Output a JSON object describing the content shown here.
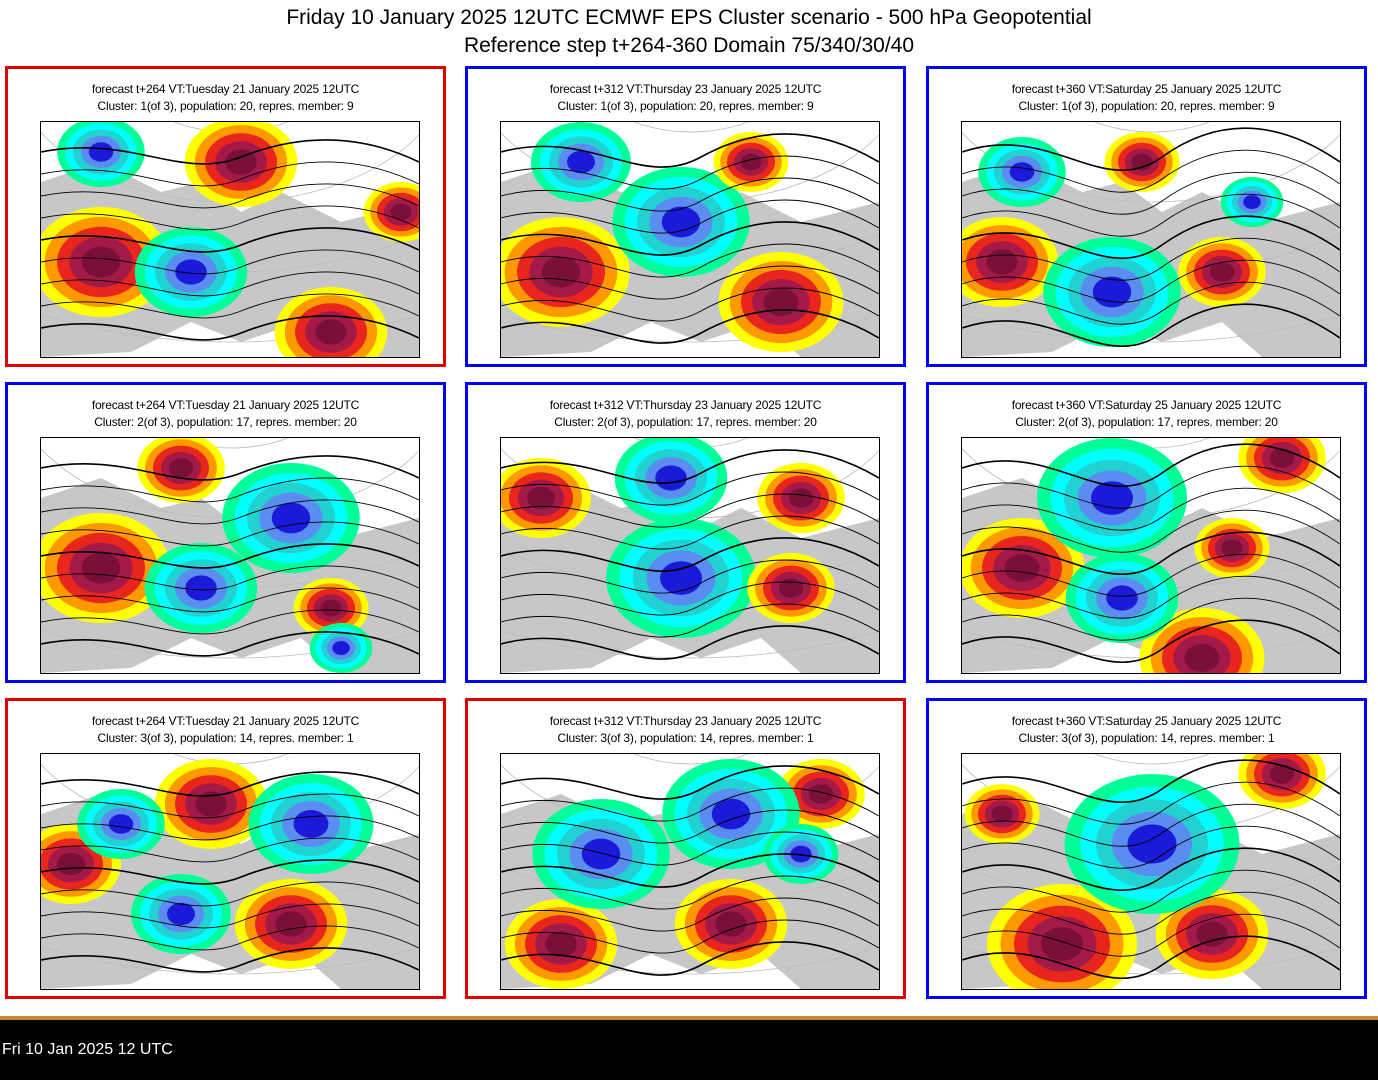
{
  "header": {
    "title_line1": "Friday 10 January 2025 12UTC ECMWF EPS Cluster scenario - 500 hPa Geopotential",
    "title_line2": "Reference step t+264-360 Domain 75/340/30/40"
  },
  "colors": {
    "warm_border": "#e00000",
    "cool_border": "#0000ff",
    "positive_anomaly": [
      "#ffff00",
      "#ff9900",
      "#e8261e",
      "#a31947",
      "#7a0f3a"
    ],
    "negative_anomaly": [
      "#00ff99",
      "#00ffff",
      "#22d2d2",
      "#5b8cf0",
      "#1a1ad8"
    ],
    "land": "#999999",
    "status_bar": "#000000",
    "accent_bar": "#c9872f"
  },
  "panels": [
    {
      "border": "red",
      "line1": "forecast t+264 VT:Tuesday 21 January 2025 12UTC",
      "line2": "Cluster: 1(of 3), population: 20, repres. member: 9"
    },
    {
      "border": "blue",
      "line1": "forecast t+312 VT:Thursday 23 January 2025 12UTC",
      "line2": "Cluster: 1(of 3), population: 20, repres. member: 9"
    },
    {
      "border": "blue",
      "line1": "forecast t+360 VT:Saturday 25 January 2025 12UTC",
      "line2": "Cluster: 1(of 3), population: 20, repres. member: 9"
    },
    {
      "border": "blue",
      "line1": "forecast t+264 VT:Tuesday 21 January 2025 12UTC",
      "line2": "Cluster: 2(of 3), population: 17, repres. member: 20"
    },
    {
      "border": "blue",
      "line1": "forecast t+312 VT:Thursday 23 January 2025 12UTC",
      "line2": "Cluster: 2(of 3), population: 17, repres. member: 20"
    },
    {
      "border": "blue",
      "line1": "forecast t+360 VT:Saturday 25 January 2025 12UTC",
      "line2": "Cluster: 2(of 3), population: 17, repres. member: 20"
    },
    {
      "border": "red",
      "line1": "forecast t+264 VT:Tuesday 21 January 2025 12UTC",
      "line2": "Cluster: 3(of 3), population: 14, repres. member: 1"
    },
    {
      "border": "red",
      "line1": "forecast t+312 VT:Thursday 23 January 2025 12UTC",
      "line2": "Cluster: 3(of 3), population: 14, repres. member: 1"
    },
    {
      "border": "blue",
      "line1": "forecast t+360 VT:Saturday 25 January 2025 12UTC",
      "line2": "Cluster: 3(of 3), population: 14, repres. member: 1"
    }
  ],
  "status": {
    "text": "Fri 10 Jan 2025 12 UTC"
  }
}
